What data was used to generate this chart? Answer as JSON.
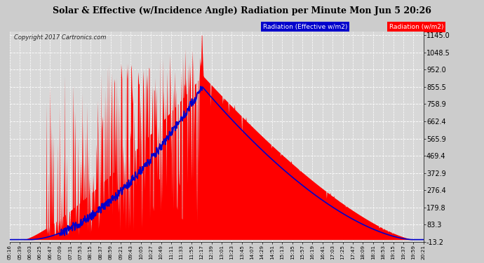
{
  "title": "Solar & Effective (w/Incidence Angle) Radiation per Minute Mon Jun 5 20:26",
  "copyright": "Copyright 2017 Cartronics.com",
  "legend_blue": "Radiation (Effective w/m2)",
  "legend_red": "Radiation (w/m2)",
  "ymin": -13.2,
  "ymax": 1145.0,
  "yticks": [
    -13.2,
    83.3,
    179.8,
    276.4,
    372.9,
    469.4,
    565.9,
    662.4,
    758.9,
    855.5,
    952.0,
    1048.5,
    1145.0
  ],
  "background_color": "#f0f0f0",
  "plot_bg_color": "#d8d8d8",
  "red_color": "#ff0000",
  "blue_color": "#0000cc",
  "title_bg_color": "#ffffff",
  "title_text_color": "#000000",
  "grid_color": "#ffffff",
  "x_labels": [
    "05:16",
    "05:39",
    "06:03",
    "06:25",
    "06:47",
    "07:09",
    "07:31",
    "07:53",
    "08:15",
    "08:37",
    "08:59",
    "09:21",
    "09:43",
    "10:05",
    "10:27",
    "10:49",
    "11:11",
    "11:33",
    "11:55",
    "12:17",
    "12:39",
    "13:01",
    "13:23",
    "13:45",
    "14:07",
    "14:29",
    "14:51",
    "15:13",
    "15:35",
    "15:57",
    "16:19",
    "16:41",
    "17:03",
    "17:25",
    "17:47",
    "18:09",
    "18:31",
    "18:53",
    "19:15",
    "19:37",
    "19:59",
    "20:21"
  ]
}
